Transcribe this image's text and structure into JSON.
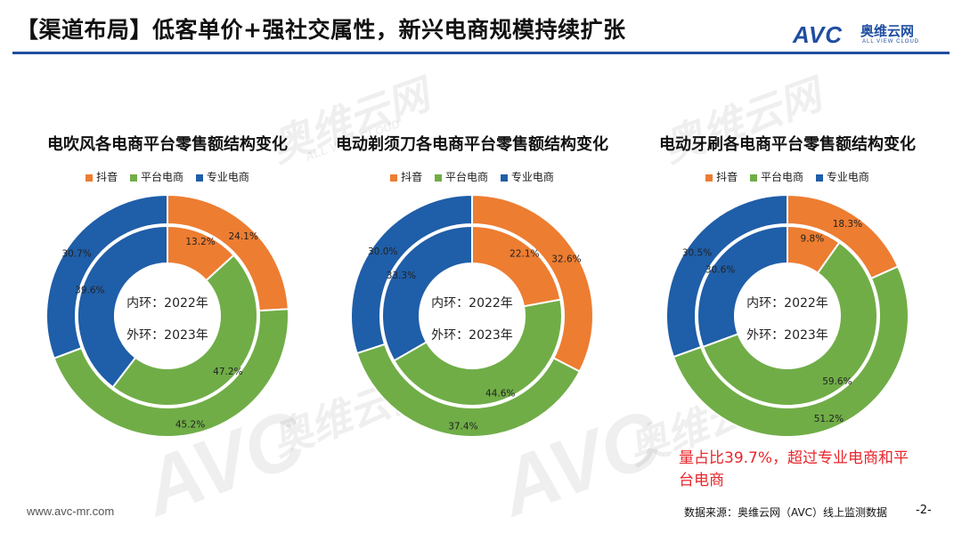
{
  "slide": {
    "title": "【渠道布局】低客单价+强社交属性，新兴电商规模持续扩张"
  },
  "logo": {
    "brand": "AVC",
    "chinese": "奥维云网",
    "english": "ALL VIEW CLOUD"
  },
  "watermark": {
    "brand": "AVC",
    "chinese": "奥维云网",
    "english": "ALL VIEW CLOUD"
  },
  "colors": {
    "douyin": "#ed7d31",
    "platform": "#70ad47",
    "specialty": "#1f5ea8",
    "accent": "#1f4ea0",
    "highlight": "#e8262b"
  },
  "legend": {
    "douyin": "抖音",
    "platform": "平台电商",
    "specialty": "专业电商"
  },
  "center": {
    "inner": "内环：2022年",
    "outer": "外环：2023年"
  },
  "chart_data": [
    {
      "type": "donut",
      "title": "电吹风各电商平台零售额结构变化",
      "categories": [
        "抖音",
        "平台电商",
        "专业电商"
      ],
      "series": [
        {
          "name": "内环：2022年",
          "values": [
            13.2,
            47.2,
            39.6
          ]
        },
        {
          "name": "外环：2023年",
          "values": [
            24.1,
            45.2,
            30.7
          ]
        }
      ]
    },
    {
      "type": "donut",
      "title": "电动剃须刀各电商平台零售额结构变化",
      "categories": [
        "抖音",
        "平台电商",
        "专业电商"
      ],
      "series": [
        {
          "name": "内环：2022年",
          "values": [
            22.1,
            44.6,
            33.3
          ]
        },
        {
          "name": "外环：2023年",
          "values": [
            32.6,
            37.4,
            30.0
          ]
        }
      ]
    },
    {
      "type": "donut",
      "title": "电动牙刷各电商平台零售额结构变化",
      "categories": [
        "抖音",
        "平台电商",
        "专业电商"
      ],
      "series": [
        {
          "name": "内环：2022年",
          "values": [
            9.8,
            59.6,
            30.6
          ]
        },
        {
          "name": "外环：2023年",
          "values": [
            18.3,
            51.2,
            30.5
          ]
        }
      ]
    }
  ],
  "callout": {
    "text": "量占比39.7%，超过专业电商和平台电商"
  },
  "footer": {
    "url": "www.avc-mr.com",
    "source": "数据来源：奥维云网（AVC）线上监测数据",
    "page": "-2-"
  }
}
